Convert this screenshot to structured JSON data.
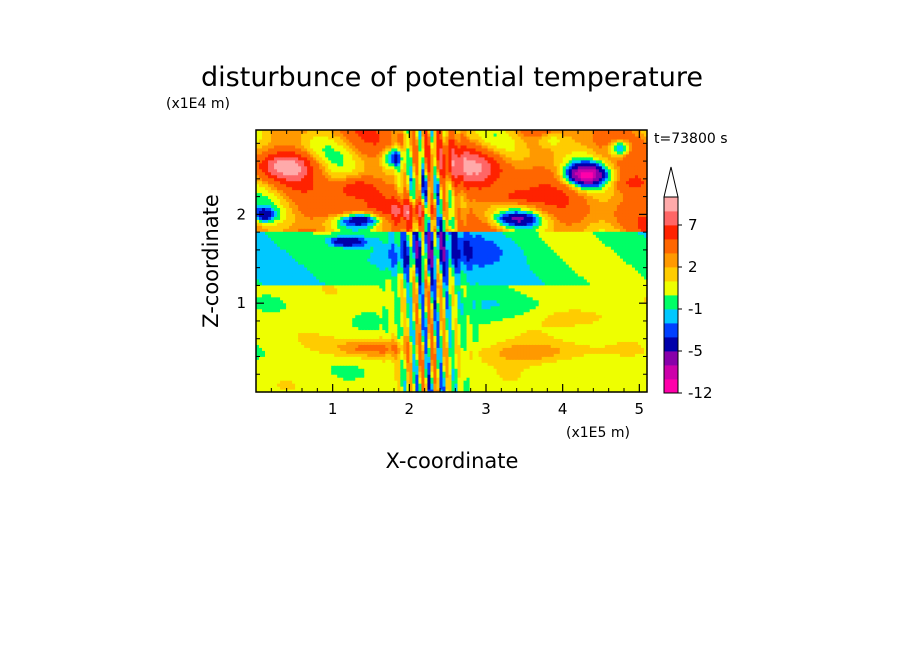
{
  "chart_data": {
    "type": "heatmap",
    "title": "disturbunce of potential temperature",
    "xlabel": "X-coordinate",
    "ylabel": "Z-coordinate",
    "x_scale_label": "(x1E5 m)",
    "y_scale_label": "(x1E4 m)",
    "time_label": "t=73800 s",
    "xlim": [
      0,
      5.1
    ],
    "ylim": [
      0,
      2.95
    ],
    "x_ticks": [
      1,
      2,
      3,
      4,
      5
    ],
    "x_tick_labels": [
      "1",
      "2",
      "3",
      "4",
      "5"
    ],
    "y_ticks": [
      1,
      2
    ],
    "y_tick_labels": [
      "1",
      "2"
    ],
    "colorbar": {
      "levels": [
        -12,
        -9,
        -7,
        -5,
        -3,
        -2,
        -1,
        0,
        1,
        2,
        3,
        5,
        7,
        9,
        12
      ],
      "colors": [
        "#ff00aa",
        "#cc00aa",
        "#8800aa",
        "#0000aa",
        "#0040ff",
        "#00c8ff",
        "#00ff66",
        "#eeff00",
        "#ffcc00",
        "#ff9900",
        "#ff6600",
        "#ff2200",
        "#ff6666",
        "#ffaaaa"
      ],
      "extend": "max",
      "tick_values": [
        -12,
        -5,
        -1,
        2,
        7
      ],
      "tick_labels": [
        "-12",
        "-5",
        "-1",
        "2",
        "7"
      ]
    },
    "features": [
      {
        "x": 0.4,
        "z": 2.55,
        "sx": 0.35,
        "sz": 0.15,
        "amp": 6
      },
      {
        "x": 1.3,
        "z": 2.3,
        "sx": 0.25,
        "sz": 0.12,
        "amp": 4
      },
      {
        "x": 2.9,
        "z": 2.55,
        "sx": 0.4,
        "sz": 0.22,
        "amp": 5
      },
      {
        "x": 3.4,
        "z": 2.2,
        "sx": 0.35,
        "sz": 0.1,
        "amp": 4
      },
      {
        "x": 2.0,
        "z": 2.05,
        "sx": 0.3,
        "sz": 0.1,
        "amp": 3
      },
      {
        "x": 1.1,
        "z": 2.05,
        "sx": 0.4,
        "sz": 0.1,
        "amp": 3
      },
      {
        "x": 4.9,
        "z": 2.35,
        "sx": 0.3,
        "sz": 0.12,
        "amp": 3
      },
      {
        "x": 4.3,
        "z": 2.45,
        "sx": 0.25,
        "sz": 0.12,
        "amp": -10
      },
      {
        "x": 4.75,
        "z": 2.75,
        "sx": 0.15,
        "sz": 0.1,
        "amp": -7
      },
      {
        "x": 1.8,
        "z": 2.65,
        "sx": 0.15,
        "sz": 0.12,
        "amp": -6
      },
      {
        "x": 1.4,
        "z": 1.95,
        "sx": 0.3,
        "sz": 0.08,
        "amp": -6
      },
      {
        "x": 1.2,
        "z": 1.7,
        "sx": 0.25,
        "sz": 0.06,
        "amp": -5
      },
      {
        "x": 0.1,
        "z": 2.0,
        "sx": 0.15,
        "sz": 0.08,
        "amp": -5
      },
      {
        "x": 3.4,
        "z": 1.95,
        "sx": 0.3,
        "sz": 0.08,
        "amp": -5
      },
      {
        "x": 2.4,
        "z": 1.9,
        "sx": 0.2,
        "sz": 0.1,
        "amp": -4
      },
      {
        "x": 3.85,
        "z": 2.85,
        "sx": 0.2,
        "sz": 0.1,
        "amp": -3
      },
      {
        "x": 2.6,
        "z": 1.6,
        "sx": 0.7,
        "sz": 0.2,
        "amp": -2
      },
      {
        "x": 1.8,
        "z": 1.5,
        "sx": 0.5,
        "sz": 0.2,
        "amp": -1.8
      },
      {
        "x": 2.9,
        "z": 0.95,
        "sx": 0.9,
        "sz": 0.18,
        "amp": -1.2
      },
      {
        "x": 1.5,
        "z": 0.5,
        "sx": 0.5,
        "sz": 0.1,
        "amp": 3
      },
      {
        "x": 3.6,
        "z": 0.45,
        "sx": 0.7,
        "sz": 0.12,
        "amp": 2.5
      },
      {
        "x": 4.2,
        "z": 0.85,
        "sx": 0.4,
        "sz": 0.1,
        "amp": 2
      }
    ]
  }
}
